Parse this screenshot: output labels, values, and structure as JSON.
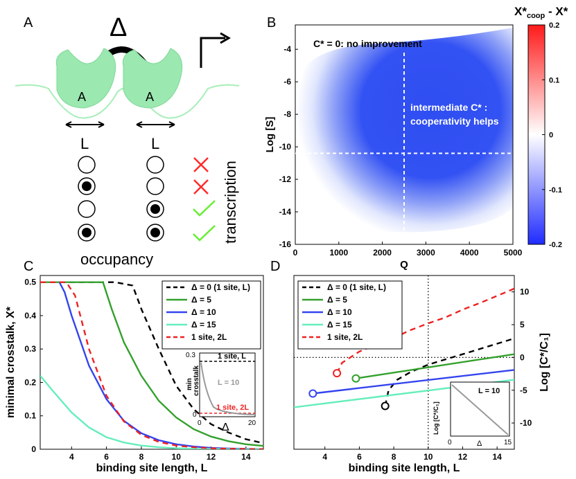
{
  "panel_a": {
    "letter": "A",
    "delta_symbol": "Δ",
    "protein_label_left": "A",
    "protein_label_right": "A",
    "length_label_left": "L",
    "length_label_right": "L",
    "occupancy_label": "occupancy",
    "transcription_label": "transcription",
    "occupancy_rows": [
      {
        "left": "empty",
        "right": "empty",
        "result": "cross"
      },
      {
        "left": "filled",
        "right": "empty",
        "result": "cross"
      },
      {
        "left": "empty",
        "right": "filled",
        "result": "check"
      },
      {
        "left": "filled",
        "right": "filled",
        "result": "check"
      }
    ],
    "colors": {
      "protein": "#9be8b0",
      "cross": "#ff2a2a",
      "check": "#66ee33"
    }
  },
  "panel_b": {
    "letter": "B",
    "colorbar_title_main": "X*",
    "colorbar_title_sub": "coop",
    "colorbar_title_tail": " - X*",
    "annotation_top": "C* = 0: no improvement",
    "annotation_mid_1": "intermediate C* :",
    "annotation_mid_2": "cooperativity helps"
  },
  "panel_c": {
    "letter": "C",
    "inset": {
      "title": "1 site, L",
      "curve_label": "L = 10",
      "bottom_label": "1 site, 2L",
      "ylabel_1": "min",
      "ylabel_2": "crosstalk",
      "xlabel": "Δ",
      "yticks": [
        "0.3",
        "0"
      ],
      "xticks": [
        "0",
        "20"
      ]
    }
  },
  "panel_d": {
    "letter": "D",
    "inset": {
      "curve_label": "L = 10",
      "ylabel": "Log [C*/C₁]",
      "xlabel": "Δ",
      "xticks": [
        "0",
        "15"
      ]
    }
  },
  "chart_data": [
    {
      "id": "B",
      "type": "heatmap",
      "title": "",
      "xlabel": "Q",
      "ylabel": "Log [S]",
      "xlim": [
        0,
        5000
      ],
      "ylim": [
        -16,
        -2.5
      ],
      "xticks": [
        0,
        1000,
        2000,
        3000,
        4000,
        5000
      ],
      "yticks": [
        -4,
        -6,
        -8,
        -10,
        -12,
        -14,
        -16
      ],
      "colorbar": {
        "min": -0.2,
        "max": 0.2,
        "ticks": [
          0.2,
          0.1,
          0,
          -0.1,
          -0.2
        ]
      },
      "crosshair": {
        "x": 2500,
        "y": -10.4
      }
    },
    {
      "id": "C",
      "type": "line",
      "xlabel": "binding site length, L",
      "ylabel": "minimal crosstalk, X*",
      "xlim": [
        2.2,
        15
      ],
      "ylim": [
        0,
        0.52
      ],
      "xticks": [
        4,
        6,
        8,
        10,
        12,
        14
      ],
      "yticks": [
        0,
        0.1,
        0.2,
        0.3,
        0.4,
        0.5
      ],
      "series": [
        {
          "name": "Δ = 0 (1 site, L)",
          "color": "#000000",
          "dash": true,
          "x": [
            2.2,
            6.5,
            7.5,
            8,
            9,
            10,
            11,
            12,
            13,
            14,
            15
          ],
          "y": [
            0.5,
            0.5,
            0.49,
            0.42,
            0.3,
            0.19,
            0.12,
            0.075,
            0.05,
            0.03,
            0.018
          ]
        },
        {
          "name": "Δ = 5",
          "color": "#33a02c",
          "dash": false,
          "x": [
            2.2,
            5.8,
            6.3,
            7,
            8,
            9,
            10,
            11,
            12,
            13,
            14,
            15
          ],
          "y": [
            0.5,
            0.5,
            0.42,
            0.32,
            0.22,
            0.145,
            0.095,
            0.06,
            0.038,
            0.024,
            0.015,
            0.01
          ]
        },
        {
          "name": "Δ = 10",
          "color": "#3344ee",
          "dash": false,
          "x": [
            3.3,
            3.6,
            4,
            5,
            6,
            7,
            8,
            9,
            10,
            11,
            12,
            13,
            14,
            15
          ],
          "y": [
            0.5,
            0.47,
            0.4,
            0.25,
            0.15,
            0.085,
            0.048,
            0.027,
            0.015,
            0.008,
            0.004,
            0.002,
            0.001,
            0.0005
          ]
        },
        {
          "name": "Δ = 15",
          "color": "#66eebb",
          "dash": false,
          "x": [
            2.2,
            3,
            4,
            5,
            6,
            7,
            8,
            9,
            10,
            11,
            12,
            13,
            14,
            15
          ],
          "y": [
            0.22,
            0.17,
            0.11,
            0.065,
            0.036,
            0.02,
            0.011,
            0.006,
            0.003,
            0.0015,
            0.0008,
            0.0004,
            0.0002,
            0.0001
          ]
        },
        {
          "name": "1 site, 2L",
          "color": "#ee2222",
          "dash": true,
          "x": [
            2.2,
            3.7,
            4.2,
            5,
            6,
            7,
            8,
            9,
            10,
            11,
            12,
            13,
            14,
            15
          ],
          "y": [
            0.5,
            0.5,
            0.46,
            0.3,
            0.16,
            0.083,
            0.043,
            0.022,
            0.011,
            0.006,
            0.003,
            0.0015,
            0.0008,
            0.0004
          ]
        }
      ]
    },
    {
      "id": "D",
      "type": "line",
      "xlabel": "binding site length, L",
      "ylabel": "Log [C*/C₁]",
      "xlim": [
        2.2,
        15
      ],
      "ylim": [
        -14,
        12.5
      ],
      "xticks": [
        4,
        6,
        8,
        10,
        12,
        14
      ],
      "yticks": [
        10,
        5,
        0,
        -5,
        -10
      ],
      "series": [
        {
          "name": "Δ = 0 (1 site, L)",
          "color": "#000000",
          "dash": true,
          "x": [
            7.5,
            7.7,
            8.2,
            9,
            10,
            11,
            12,
            13,
            14,
            15
          ],
          "y": [
            -7.4,
            -5,
            -3.4,
            -2.2,
            -1.1,
            -0.3,
            0.5,
            1.3,
            2.1,
            2.9
          ]
        },
        {
          "name": "Δ = 5",
          "color": "#33a02c",
          "dash": false,
          "x": [
            5.8,
            15
          ],
          "y": [
            -3.2,
            0.5
          ]
        },
        {
          "name": "Δ = 10",
          "color": "#3344ee",
          "dash": false,
          "x": [
            3.3,
            15
          ],
          "y": [
            -5.5,
            -1.9
          ]
        },
        {
          "name": "Δ = 15",
          "color": "#66eebb",
          "dash": false,
          "x": [
            2.2,
            15
          ],
          "y": [
            -7.6,
            -3.4
          ]
        },
        {
          "name": "1 site, 2L",
          "color": "#ee2222",
          "dash": true,
          "x": [
            4.7,
            5,
            6,
            7,
            8,
            9,
            10,
            11,
            12,
            13,
            14,
            15
          ],
          "y": [
            -2.4,
            -0.8,
            0.9,
            2.0,
            3.0,
            4.2,
            5.2,
            6.1,
            7.3,
            8.3,
            9.4,
            10.5
          ]
        }
      ],
      "markers": [
        {
          "series": "Δ = 0 (1 site, L)",
          "x": 7.5,
          "y": -7.4
        },
        {
          "series": "Δ = 5",
          "x": 5.8,
          "y": -3.2
        },
        {
          "series": "Δ = 10",
          "x": 3.3,
          "y": -5.5
        },
        {
          "series": "1 site, 2L",
          "x": 4.7,
          "y": -2.4
        }
      ],
      "reference_lines": {
        "x": 10,
        "y": 0
      }
    }
  ]
}
